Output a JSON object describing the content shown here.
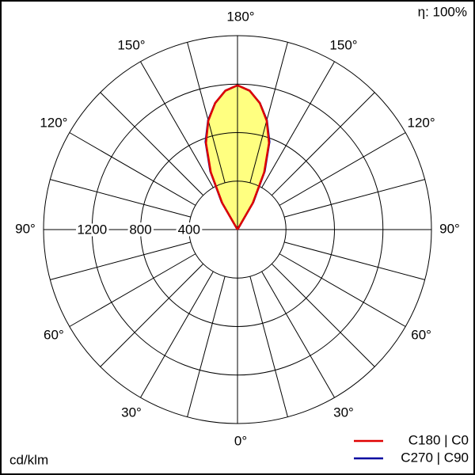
{
  "chart_data": {
    "type": "polar",
    "efficiency_label": "η: 100%",
    "unit_label": "cd/klm",
    "rlim": [
      0,
      1600
    ],
    "rticks": [
      400,
      800,
      1200
    ],
    "thetaticks": [
      {
        "value": 0,
        "label": "0°"
      },
      {
        "value": 30,
        "label": "30°"
      },
      {
        "value": 60,
        "label": "60°"
      },
      {
        "value": 90,
        "label": "90°"
      },
      {
        "value": 120,
        "label": "120°"
      },
      {
        "value": 150,
        "label": "150°"
      },
      {
        "value": 180,
        "label": "180°"
      }
    ],
    "theta": [
      145,
      150,
      155,
      160,
      165,
      170,
      175,
      180
    ],
    "fill_color": "#ffff80",
    "series": [
      {
        "name": "C180 | C0",
        "color": "#e00000",
        "values": [
          0,
          250,
          520,
          760,
          930,
          1060,
          1150,
          1190
        ]
      },
      {
        "name": "C270 | C90",
        "color": "#0000a0",
        "values": [
          0,
          260,
          530,
          770,
          935,
          1060,
          1150,
          1190
        ]
      }
    ],
    "legend": "lower right"
  }
}
